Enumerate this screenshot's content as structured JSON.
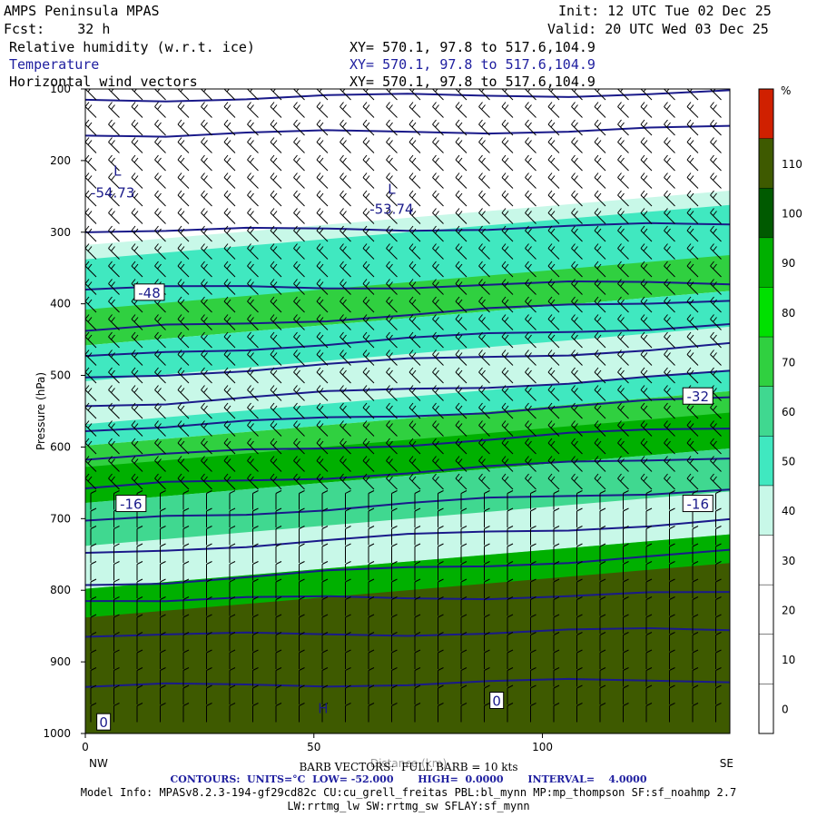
{
  "header": {
    "model": "AMPS Peninsula MPAS",
    "fcst": "Fcst:    32 h",
    "init": "Init: 12 UTC Tue 02 Dec 25",
    "valid": "Valid: 20 UTC Wed 03 Dec 25",
    "field1": "Relative humidity (w.r.t. ice)",
    "field2": "Temperature",
    "field3": "Horizontal wind vectors",
    "xy1": "XY= 570.1, 97.8 to 517.6,104.9",
    "xy2": "XY= 570.1, 97.8 to 517.6,104.9",
    "xy3": "XY= 570.1, 97.8 to 517.6,104.9"
  },
  "footer": {
    "barb": "BARB VECTORS:  FULL BARB = 10 kts",
    "contours": "CONTOURS:  UNITS=°C  LOW= -52.000       HIGH=  0.0000       INTERVAL=    4.0000",
    "model_info": "Model Info: MPASv8.2.3-194-gf29cd82c CU:cu_grell_freitas PBL:bl_mynn MP:mp_thompson SF:sf_noahmp 2.7",
    "model_info2": "LW:rrtmg_lw SW:rrtmg_sw SFLAY:sf_mynn"
  },
  "colors": {
    "frame": "#000000",
    "contour": "#1a1a8a",
    "barb": "#000000"
  },
  "chart_data": {
    "type": "heatmap",
    "xlabel": "Distance (km)",
    "ylabel": "Pressure (hPa)",
    "x_left_label": "NW",
    "x_right_label": "SE",
    "xlim": [
      0,
      141
    ],
    "ylim": [
      1000,
      100
    ],
    "xticks": [
      0,
      50,
      100
    ],
    "yticks": [
      100,
      200,
      300,
      400,
      500,
      600,
      700,
      800,
      900,
      1000
    ],
    "colorbar": {
      "unit": "%",
      "levels": [
        0,
        10,
        20,
        30,
        40,
        50,
        60,
        70,
        80,
        90,
        100,
        110
      ],
      "colors": [
        "#ffffff",
        "#ffffff",
        "#ffffff",
        "#ffffff",
        "#c8f8e8",
        "#40e8c0",
        "#40d890",
        "#30d040",
        "#00e000",
        "#00b000",
        "#005a00",
        "#3e5a00",
        "#d02000"
      ]
    },
    "temperature_contour_labels": [
      {
        "text": "L",
        "x": 7,
        "p": 215
      },
      {
        "text": "-54.73",
        "x": 6,
        "p": 245
      },
      {
        "text": "L",
        "x": 67,
        "p": 240
      },
      {
        "text": "-53.74",
        "x": 67,
        "p": 268
      },
      {
        "text": "-48",
        "x": 14,
        "p": 385
      },
      {
        "text": "-32",
        "x": 134,
        "p": 530
      },
      {
        "text": "-16",
        "x": 10,
        "p": 680
      },
      {
        "text": "-16",
        "x": 134,
        "p": 680
      },
      {
        "text": "H",
        "x": 52,
        "p": 965
      },
      {
        "text": "0",
        "x": 90,
        "p": 955
      },
      {
        "text": "0",
        "x": 4,
        "p": 985
      }
    ],
    "temperature_contours_p": [
      110,
      160,
      295,
      375,
      415,
      450,
      480,
      520,
      555,
      595,
      635,
      680,
      725,
      770,
      810,
      860,
      930
    ]
  }
}
